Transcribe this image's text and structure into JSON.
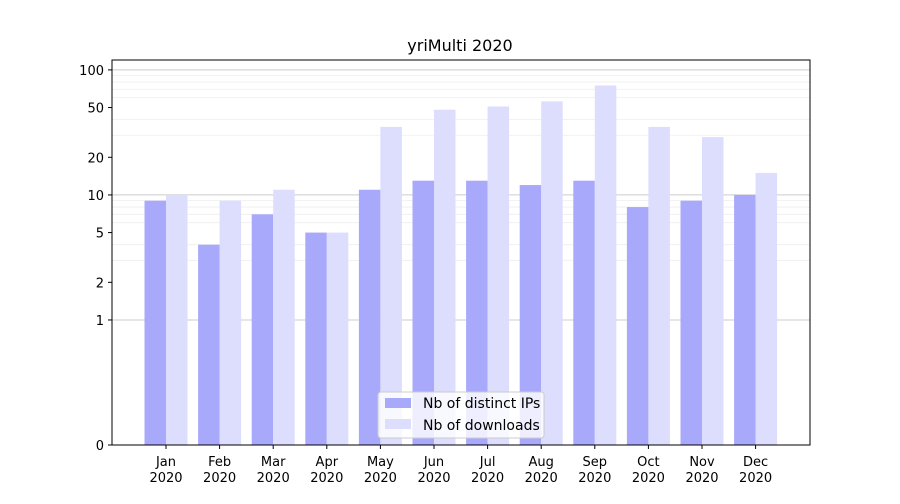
{
  "chart_data": {
    "type": "bar",
    "title": "yriMulti 2020",
    "xlabel": "",
    "ylabel": "",
    "yscale": "symlog",
    "ylim": [
      0,
      120
    ],
    "yticks": [
      0,
      1,
      2,
      5,
      10,
      20,
      50,
      100
    ],
    "ytick_labels": [
      "0",
      "1",
      "2",
      "5",
      "10",
      "20",
      "50",
      "100"
    ],
    "grid": true,
    "legend_position": "bottom-center",
    "categories": [
      "Jan\n2020",
      "Feb\n2020",
      "Mar\n2020",
      "Apr\n2020",
      "May\n2020",
      "Jun\n2020",
      "Jul\n2020",
      "Aug\n2020",
      "Sep\n2020",
      "Oct\n2020",
      "Nov\n2020",
      "Dec\n2020"
    ],
    "series": [
      {
        "name": "Nb of distinct IPs",
        "color": "#a9a9fb",
        "values": [
          9,
          4,
          7,
          5,
          11,
          13,
          13,
          12,
          13,
          8,
          9,
          10
        ]
      },
      {
        "name": "Nb of downloads",
        "color": "#ddddfd",
        "values": [
          10,
          9,
          11,
          5,
          35,
          48,
          51,
          56,
          75,
          35,
          29,
          15
        ]
      }
    ]
  }
}
